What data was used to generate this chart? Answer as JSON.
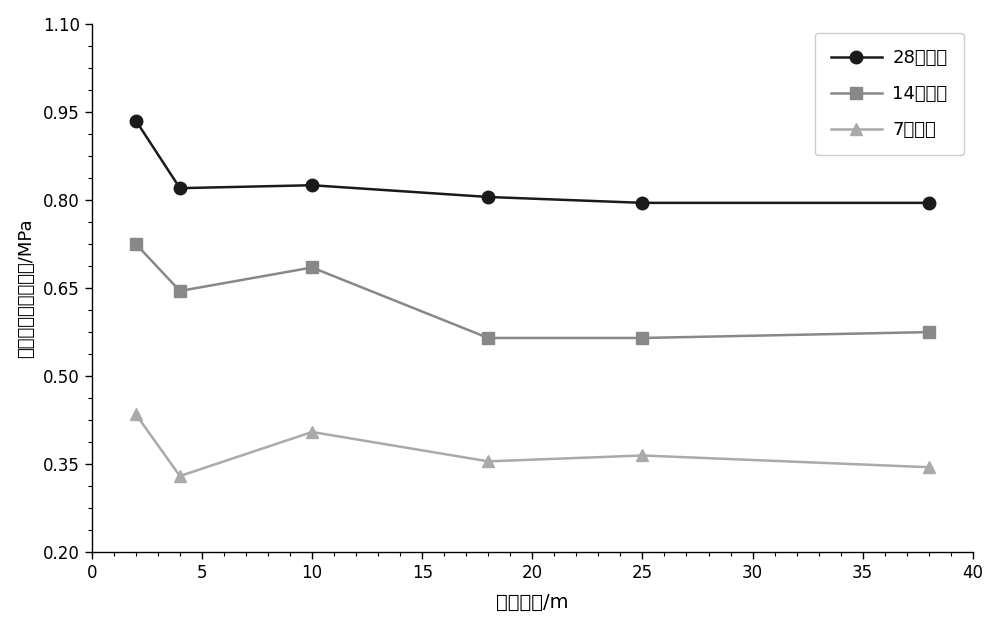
{
  "x": [
    2,
    4,
    10,
    18,
    25,
    38
  ],
  "series_28": [
    0.935,
    0.82,
    0.825,
    0.805,
    0.795,
    0.795
  ],
  "series_14": [
    0.725,
    0.645,
    0.685,
    0.565,
    0.565,
    0.575
  ],
  "series_7": [
    0.435,
    0.33,
    0.405,
    0.355,
    0.365,
    0.345
  ],
  "color_28": "#1a1a1a",
  "color_14": "#888888",
  "color_7": "#aaaaaa",
  "xlabel": "土层深度/m",
  "ylabel": "水泥土芯样平均强度/MPa",
  "legend_28": "28天强度",
  "legend_14": "14天强度",
  "legend_7": "7天强度",
  "xlim": [
    0,
    40
  ],
  "ylim": [
    0.2,
    1.1
  ],
  "xticks": [
    0,
    5,
    10,
    15,
    20,
    25,
    30,
    35,
    40
  ],
  "yticks": [
    0.2,
    0.35,
    0.5,
    0.65,
    0.8,
    0.95,
    1.1
  ],
  "bg_color": "#ffffff"
}
